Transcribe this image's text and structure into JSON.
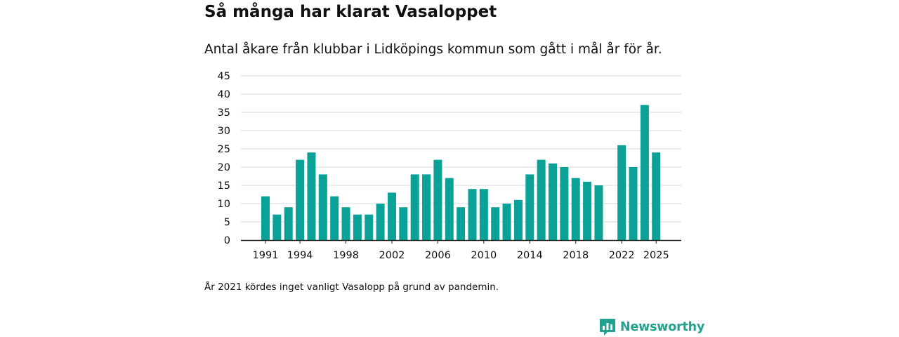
{
  "header": {
    "title": "Så många har klarat Vasaloppet",
    "subtitle": "Antal åkare från klubbar i Lidköpings kommun som gått i mål år för år."
  },
  "footer": {
    "note": "År 2021 kördes inget vanligt Vasalopp på grund av pandemin.",
    "brand": "Newsworthy"
  },
  "colors": {
    "bar": "#0aa296",
    "brand": "#23a18f"
  },
  "chart_data": {
    "type": "bar",
    "title": "Så många har klarat Vasaloppet",
    "xlabel": "",
    "ylabel": "",
    "ylim": [
      0,
      45
    ],
    "yticks": [
      0,
      5,
      10,
      15,
      20,
      25,
      30,
      35,
      40,
      45
    ],
    "xticks": [
      1991,
      1994,
      1998,
      2002,
      2006,
      2010,
      2014,
      2018,
      2022,
      2025
    ],
    "grid": true,
    "categories": [
      1991,
      1992,
      1993,
      1994,
      1995,
      1996,
      1997,
      1998,
      1999,
      2000,
      2001,
      2002,
      2003,
      2004,
      2005,
      2006,
      2007,
      2008,
      2009,
      2010,
      2011,
      2012,
      2013,
      2014,
      2015,
      2016,
      2017,
      2018,
      2019,
      2020,
      2021,
      2022,
      2023,
      2024,
      2025
    ],
    "values": [
      12,
      7,
      9,
      22,
      24,
      18,
      12,
      9,
      7,
      7,
      10,
      13,
      9,
      18,
      18,
      22,
      17,
      9,
      14,
      14,
      9,
      10,
      11,
      18,
      22,
      21,
      20,
      17,
      16,
      15,
      null,
      26,
      20,
      37,
      24
    ]
  }
}
